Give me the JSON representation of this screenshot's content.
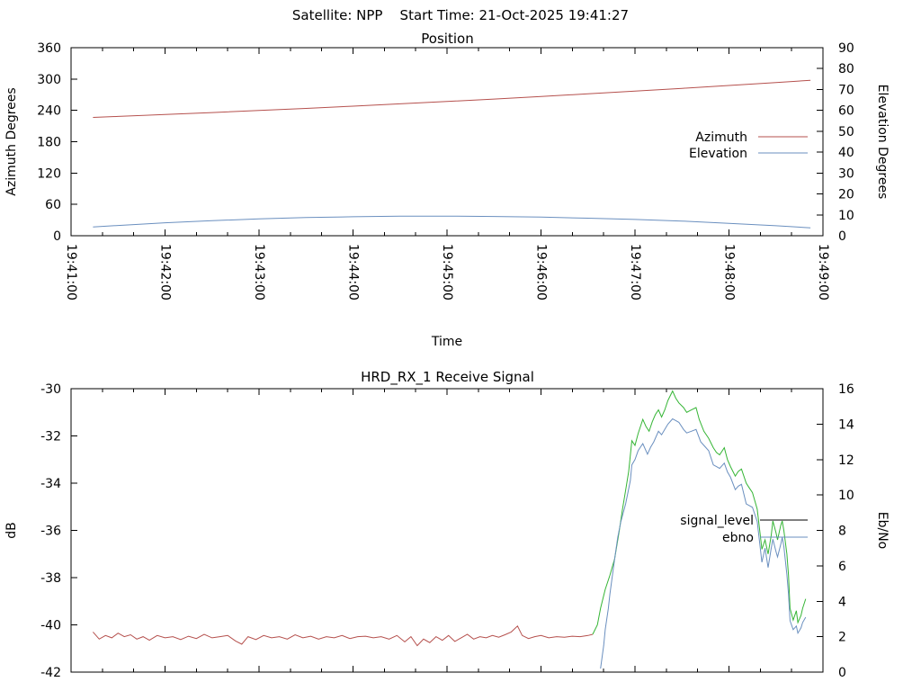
{
  "header": {
    "title": "Satellite: NPP    Start Time: 21-Oct-2025 19:41:27"
  },
  "colors": {
    "azimuth_line": "#b5504d",
    "elevation_line": "#6a8fbf",
    "signal_pre_acquisition_line": "#b5504d",
    "signal_locked_line": "#35b535",
    "ebno_line": "#6a8fbf",
    "legend_signal_level_sample": "#000000",
    "axis": "#000000",
    "background": "#ffffff"
  },
  "chart_data": [
    {
      "type": "line",
      "title": "Position",
      "xlabel": "Time",
      "ylabel_left": "Azimuth Degrees",
      "ylabel_right": "Elevation Degrees",
      "x_domain_seconds": [
        0,
        480
      ],
      "x_major_tick_seconds": 60,
      "x_minor_tick_seconds": 20,
      "x_tick_labels": [
        "19:41:00",
        "19:42:00",
        "19:43:00",
        "19:44:00",
        "19:45:00",
        "19:46:00",
        "19:47:00",
        "19:48:00",
        "19:49:00"
      ],
      "ylim_left": [
        0,
        360
      ],
      "left_tick_step": 60,
      "ylim_right": [
        0,
        90
      ],
      "right_tick_step": 10,
      "grid": false,
      "legend_position": "inside-right",
      "legend": [
        {
          "label": "Azimuth",
          "color": "#b5504d"
        },
        {
          "label": "Elevation",
          "color": "#6a8fbf"
        }
      ],
      "series": [
        {
          "name": "Azimuth",
          "axis": "left",
          "color": "#b5504d",
          "points": [
            [
              14,
              226.5
            ],
            [
              30,
              228.4
            ],
            [
              60,
              232.0
            ],
            [
              90,
              235.8
            ],
            [
              120,
              239.7
            ],
            [
              150,
              243.8
            ],
            [
              180,
              248.1
            ],
            [
              210,
              252.5
            ],
            [
              240,
              257.0
            ],
            [
              270,
              261.7
            ],
            [
              300,
              266.6
            ],
            [
              330,
              271.6
            ],
            [
              360,
              276.8
            ],
            [
              390,
              282.1
            ],
            [
              420,
              287.6
            ],
            [
              450,
              293.3
            ],
            [
              472,
              297.5
            ]
          ]
        },
        {
          "name": "Elevation",
          "axis": "right",
          "color": "#6a8fbf",
          "points": [
            [
              14,
              4.2
            ],
            [
              30,
              4.9
            ],
            [
              60,
              6.2
            ],
            [
              90,
              7.2
            ],
            [
              120,
              8.1
            ],
            [
              150,
              8.7
            ],
            [
              180,
              9.1
            ],
            [
              210,
              9.4
            ],
            [
              240,
              9.4
            ],
            [
              270,
              9.2
            ],
            [
              300,
              8.9
            ],
            [
              330,
              8.4
            ],
            [
              360,
              7.8
            ],
            [
              390,
              7.0
            ],
            [
              420,
              5.9
            ],
            [
              450,
              4.8
            ],
            [
              472,
              3.8
            ]
          ]
        }
      ]
    },
    {
      "type": "line",
      "title": "HRD_RX_1 Receive Signal",
      "xlabel": "",
      "ylabel_left": "dB",
      "ylabel_right": "Eb/No",
      "x_domain_seconds": [
        0,
        480
      ],
      "x_major_tick_seconds": 60,
      "x_minor_tick_seconds": 20,
      "x_tick_labels": [],
      "ylim_left": [
        -42,
        -30
      ],
      "left_tick_step": 2,
      "ylim_right": [
        0,
        16
      ],
      "right_tick_step": 2,
      "grid": false,
      "legend_position": "inside-right",
      "legend": [
        {
          "label": "signal_level",
          "color": "#000000"
        },
        {
          "label": "ebno",
          "color": "#6a8fbf"
        }
      ],
      "series": [
        {
          "name": "signal_level",
          "phase": "pre-acquisition",
          "axis": "left",
          "color": "#b5504d",
          "points": [
            [
              14,
              -40.3
            ],
            [
              18,
              -40.6
            ],
            [
              22,
              -40.45
            ],
            [
              26,
              -40.55
            ],
            [
              30,
              -40.35
            ],
            [
              34,
              -40.5
            ],
            [
              38,
              -40.42
            ],
            [
              42,
              -40.6
            ],
            [
              46,
              -40.5
            ],
            [
              50,
              -40.65
            ],
            [
              55,
              -40.45
            ],
            [
              60,
              -40.55
            ],
            [
              65,
              -40.5
            ],
            [
              70,
              -40.62
            ],
            [
              75,
              -40.48
            ],
            [
              80,
              -40.58
            ],
            [
              85,
              -40.4
            ],
            [
              90,
              -40.55
            ],
            [
              95,
              -40.5
            ],
            [
              100,
              -40.45
            ],
            [
              105,
              -40.68
            ],
            [
              109,
              -40.82
            ],
            [
              113,
              -40.5
            ],
            [
              118,
              -40.62
            ],
            [
              123,
              -40.45
            ],
            [
              128,
              -40.55
            ],
            [
              133,
              -40.5
            ],
            [
              138,
              -40.6
            ],
            [
              143,
              -40.42
            ],
            [
              148,
              -40.55
            ],
            [
              153,
              -40.48
            ],
            [
              158,
              -40.6
            ],
            [
              163,
              -40.5
            ],
            [
              168,
              -40.55
            ],
            [
              173,
              -40.45
            ],
            [
              178,
              -40.58
            ],
            [
              183,
              -40.5
            ],
            [
              188,
              -40.48
            ],
            [
              193,
              -40.55
            ],
            [
              198,
              -40.5
            ],
            [
              203,
              -40.6
            ],
            [
              208,
              -40.45
            ],
            [
              213,
              -40.72
            ],
            [
              217,
              -40.5
            ],
            [
              221,
              -40.88
            ],
            [
              225,
              -40.6
            ],
            [
              229,
              -40.75
            ],
            [
              233,
              -40.5
            ],
            [
              237,
              -40.65
            ],
            [
              241,
              -40.45
            ],
            [
              245,
              -40.7
            ],
            [
              249,
              -40.55
            ],
            [
              253,
              -40.4
            ],
            [
              257,
              -40.6
            ],
            [
              261,
              -40.5
            ],
            [
              265,
              -40.55
            ],
            [
              269,
              -40.45
            ],
            [
              273,
              -40.52
            ],
            [
              277,
              -40.42
            ],
            [
              281,
              -40.3
            ],
            [
              285,
              -40.05
            ],
            [
              288,
              -40.45
            ],
            [
              292,
              -40.58
            ],
            [
              296,
              -40.5
            ],
            [
              300,
              -40.45
            ],
            [
              305,
              -40.55
            ],
            [
              310,
              -40.5
            ],
            [
              315,
              -40.52
            ],
            [
              320,
              -40.48
            ],
            [
              325,
              -40.5
            ],
            [
              330,
              -40.45
            ],
            [
              333,
              -40.4
            ]
          ]
        },
        {
          "name": "signal_level",
          "phase": "locked",
          "axis": "left",
          "color": "#35b535",
          "points": [
            [
              333,
              -40.4
            ],
            [
              336,
              -40.0
            ],
            [
              338,
              -39.3
            ],
            [
              341,
              -38.5
            ],
            [
              344,
              -37.9
            ],
            [
              347,
              -37.2
            ],
            [
              350,
              -36.0
            ],
            [
              352,
              -35.1
            ],
            [
              354,
              -34.3
            ],
            [
              356,
              -33.5
            ],
            [
              358,
              -32.2
            ],
            [
              360,
              -32.4
            ],
            [
              362,
              -31.9
            ],
            [
              365,
              -31.3
            ],
            [
              367,
              -31.6
            ],
            [
              369,
              -31.8
            ],
            [
              371,
              -31.4
            ],
            [
              373,
              -31.1
            ],
            [
              375,
              -30.9
            ],
            [
              377,
              -31.2
            ],
            [
              379,
              -30.9
            ],
            [
              381,
              -30.5
            ],
            [
              384,
              -30.1
            ],
            [
              386,
              -30.4
            ],
            [
              388,
              -30.6
            ],
            [
              391,
              -30.8
            ],
            [
              393,
              -31.0
            ],
            [
              396,
              -30.9
            ],
            [
              399,
              -30.8
            ],
            [
              401,
              -31.3
            ],
            [
              404,
              -31.8
            ],
            [
              407,
              -32.1
            ],
            [
              410,
              -32.5
            ],
            [
              412,
              -32.7
            ],
            [
              414,
              -32.8
            ],
            [
              417,
              -32.5
            ],
            [
              419,
              -33.0
            ],
            [
              421,
              -33.3
            ],
            [
              424,
              -33.7
            ],
            [
              426,
              -33.5
            ],
            [
              428,
              -33.4
            ],
            [
              431,
              -34.0
            ],
            [
              433,
              -34.2
            ],
            [
              435,
              -34.4
            ],
            [
              438,
              -35.1
            ],
            [
              440,
              -36.2
            ],
            [
              441,
              -36.8
            ],
            [
              443,
              -36.4
            ],
            [
              445,
              -37.0
            ],
            [
              447,
              -36.2
            ],
            [
              448,
              -35.6
            ],
            [
              450,
              -36.1
            ],
            [
              451,
              -36.4
            ],
            [
              453,
              -35.8
            ],
            [
              454,
              -35.6
            ],
            [
              455,
              -36.0
            ],
            [
              457,
              -37.0
            ],
            [
              458,
              -37.9
            ],
            [
              459,
              -39.3
            ],
            [
              461,
              -39.8
            ],
            [
              463,
              -39.4
            ],
            [
              464,
              -39.9
            ],
            [
              466,
              -39.6
            ],
            [
              467,
              -39.3
            ],
            [
              469,
              -38.9
            ]
          ]
        },
        {
          "name": "ebno",
          "axis": "right",
          "color": "#6a8fbf",
          "points": [
            [
              338,
              0.2
            ],
            [
              340,
              1.5
            ],
            [
              341,
              2.4
            ],
            [
              343,
              3.6
            ],
            [
              344,
              4.4
            ],
            [
              347,
              6.4
            ],
            [
              349,
              7.6
            ],
            [
              351,
              8.5
            ],
            [
              354,
              9.5
            ],
            [
              357,
              10.8
            ],
            [
              358,
              11.7
            ],
            [
              360,
              12.0
            ],
            [
              362,
              12.5
            ],
            [
              365,
              12.9
            ],
            [
              368,
              12.3
            ],
            [
              370,
              12.7
            ],
            [
              372,
              13.0
            ],
            [
              375,
              13.6
            ],
            [
              377,
              13.4
            ],
            [
              379,
              13.7
            ],
            [
              381,
              14.0
            ],
            [
              384,
              14.3
            ],
            [
              386,
              14.2
            ],
            [
              388,
              14.1
            ],
            [
              391,
              13.7
            ],
            [
              393,
              13.5
            ],
            [
              396,
              13.6
            ],
            [
              399,
              13.7
            ],
            [
              402,
              13.0
            ],
            [
              404,
              12.8
            ],
            [
              407,
              12.5
            ],
            [
              410,
              11.7
            ],
            [
              412,
              11.6
            ],
            [
              414,
              11.5
            ],
            [
              417,
              11.8
            ],
            [
              419,
              11.3
            ],
            [
              421,
              11.0
            ],
            [
              424,
              10.3
            ],
            [
              426,
              10.5
            ],
            [
              428,
              10.6
            ],
            [
              431,
              9.5
            ],
            [
              433,
              9.4
            ],
            [
              435,
              9.3
            ],
            [
              438,
              8.5
            ],
            [
              440,
              7.0
            ],
            [
              441,
              6.2
            ],
            [
              443,
              7.0
            ],
            [
              445,
              5.9
            ],
            [
              447,
              7.0
            ],
            [
              448,
              7.5
            ],
            [
              450,
              6.8
            ],
            [
              451,
              6.5
            ],
            [
              453,
              7.2
            ],
            [
              454,
              7.6
            ],
            [
              455,
              7.1
            ],
            [
              457,
              5.5
            ],
            [
              458,
              4.4
            ],
            [
              459,
              2.9
            ],
            [
              461,
              2.4
            ],
            [
              463,
              2.6
            ],
            [
              464,
              2.2
            ],
            [
              466,
              2.5
            ],
            [
              467,
              2.8
            ],
            [
              469,
              3.1
            ]
          ]
        }
      ]
    }
  ]
}
